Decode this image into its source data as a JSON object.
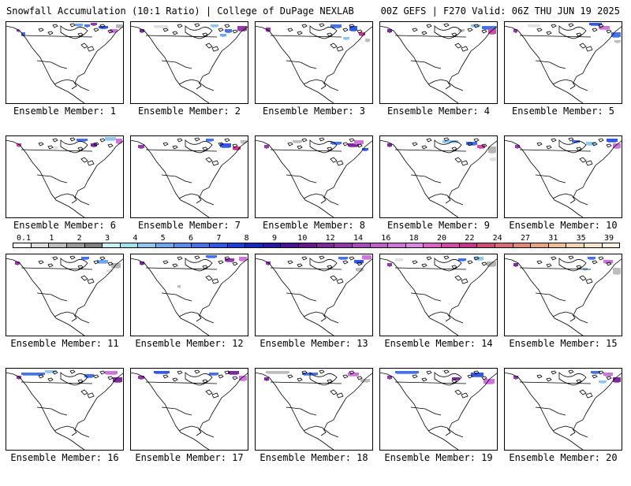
{
  "header": {
    "left": "Snowfall Accumulation (10:1 Ratio) | College of DuPage NEXLAB",
    "right": "00Z GEFS | F270 Valid: 06Z THU JUN 19 2025"
  },
  "caption_prefix": "Ensemble Member:",
  "members": [
    {
      "label": "Ensemble Member: 1"
    },
    {
      "label": "Ensemble Member: 2"
    },
    {
      "label": "Ensemble Member: 3"
    },
    {
      "label": "Ensemble Member: 4"
    },
    {
      "label": "Ensemble Member: 5"
    },
    {
      "label": "Ensemble Member: 6"
    },
    {
      "label": "Ensemble Member: 7"
    },
    {
      "label": "Ensemble Member: 8"
    },
    {
      "label": "Ensemble Member: 9"
    },
    {
      "label": "Ensemble Member: 10"
    },
    {
      "label": "Ensemble Member: 11"
    },
    {
      "label": "Ensemble Member: 12"
    },
    {
      "label": "Ensemble Member: 13"
    },
    {
      "label": "Ensemble Member: 14"
    },
    {
      "label": "Ensemble Member: 15"
    },
    {
      "label": "Ensemble Member: 16"
    },
    {
      "label": "Ensemble Member: 17"
    },
    {
      "label": "Ensemble Member: 18"
    },
    {
      "label": "Ensemble Member: 19"
    },
    {
      "label": "Ensemble Member: 20"
    }
  ],
  "colorbar": {
    "labels": [
      "0.1",
      "1",
      "2",
      "3",
      "4",
      "5",
      "6",
      "7",
      "8",
      "9",
      "10",
      "12",
      "14",
      "16",
      "18",
      "20",
      "22",
      "24",
      "27",
      "31",
      "35",
      "39"
    ],
    "colors": [
      "#ffffff",
      "#e0e0e0",
      "#bdbdbd",
      "#9a9a9a",
      "#7f7f7f",
      "#c8f0f5",
      "#9ee3ee",
      "#8ec7f0",
      "#6fa8ee",
      "#5a8ced",
      "#4770ec",
      "#3357e6",
      "#1f3ddc",
      "#1727c4",
      "#2a16a8",
      "#4a1295",
      "#66188f",
      "#7e2a9e",
      "#9538ad",
      "#aa4cbd",
      "#bd60cc",
      "#cf74db",
      "#de86e2",
      "#dd63c4",
      "#d44aa6",
      "#c9358a",
      "#ce4f7c",
      "#d86e78",
      "#e0897a",
      "#e8a483",
      "#efbf9a",
      "#f4d6b4",
      "#f8e6cc",
      "#fbf1e2"
    ]
  }
}
